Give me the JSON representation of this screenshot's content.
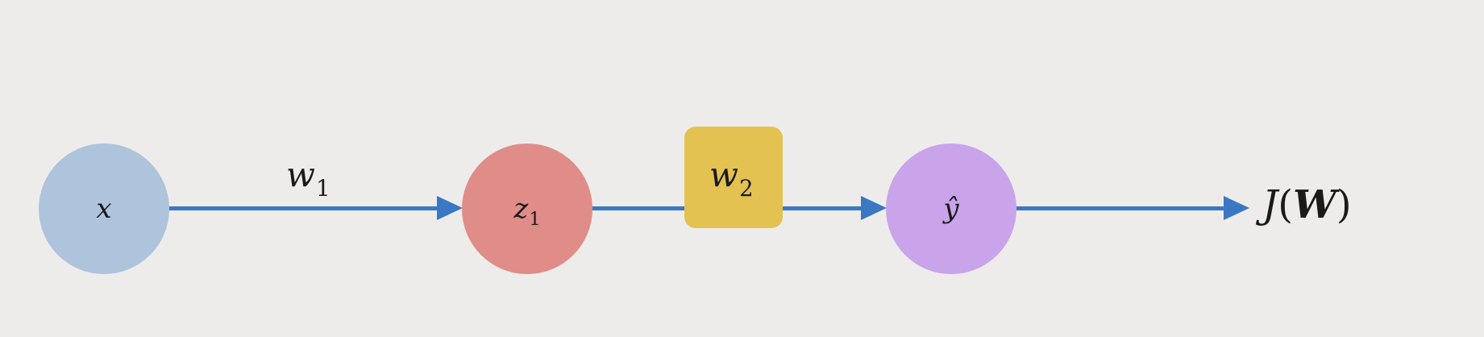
{
  "colors": {
    "background": "#eeecea",
    "x_node": "#adc4dc",
    "z_node": "#e08c88",
    "yhat_node": "#c9a4ea",
    "w2_box": "#e3c252",
    "arrow": "#3a78c4"
  },
  "nodes": {
    "x": {
      "label": "x"
    },
    "z1": {
      "label": "z",
      "subscript": "1"
    },
    "yhat": {
      "label": "ŷ"
    }
  },
  "weights": {
    "w1": {
      "label": "w",
      "subscript": "1"
    },
    "w2": {
      "label": "w",
      "subscript": "2"
    }
  },
  "loss": {
    "func": "J",
    "open": "(",
    "arg": "W",
    "close": ")"
  }
}
